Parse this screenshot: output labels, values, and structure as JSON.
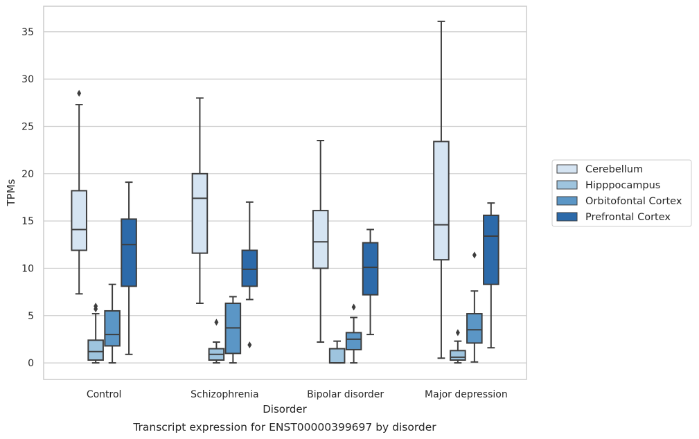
{
  "chart_data": {
    "type": "box",
    "caption": "Transcript expression for ENST00000399697 by disorder",
    "xlabel": "Disorder",
    "ylabel": "TPMs",
    "ylim": [
      -1.75,
      37.7
    ],
    "yticks": [
      0,
      5,
      10,
      15,
      20,
      25,
      30,
      35
    ],
    "grid": "horizontal",
    "legend_position": "right",
    "categories": [
      "Control",
      "Schizophrenia",
      "Bipolar disorder",
      "Major depression"
    ],
    "series": [
      {
        "name": "Cerebellum",
        "color": "#d5e4f2",
        "boxes": [
          {
            "whislo": 7.3,
            "q1": 11.9,
            "med": 14.1,
            "q3": 18.2,
            "whishi": 27.3,
            "fliers": [
              28.5
            ]
          },
          {
            "whislo": 6.3,
            "q1": 11.6,
            "med": 17.4,
            "q3": 20.0,
            "whishi": 28.0,
            "fliers": []
          },
          {
            "whislo": 2.2,
            "q1": 10.0,
            "med": 12.8,
            "q3": 16.1,
            "whishi": 23.5,
            "fliers": []
          },
          {
            "whislo": 0.5,
            "q1": 10.9,
            "med": 14.6,
            "q3": 23.4,
            "whishi": 36.1,
            "fliers": []
          }
        ]
      },
      {
        "name": "Hipppocampus",
        "color": "#9ec4de",
        "boxes": [
          {
            "whislo": 0.0,
            "q1": 0.3,
            "med": 1.2,
            "q3": 2.4,
            "whishi": 5.2,
            "fliers": [
              5.7,
              6.0
            ]
          },
          {
            "whislo": 0.0,
            "q1": 0.3,
            "med": 0.9,
            "q3": 1.5,
            "whishi": 2.2,
            "fliers": [
              4.3
            ]
          },
          {
            "whislo": 0.0,
            "q1": 0.0,
            "med": 0.0,
            "q3": 1.5,
            "whishi": 2.3,
            "fliers": []
          },
          {
            "whislo": 0.0,
            "q1": 0.3,
            "med": 0.6,
            "q3": 1.3,
            "whishi": 2.3,
            "fliers": [
              3.2
            ]
          }
        ]
      },
      {
        "name": "Orbitofontal Cortex",
        "color": "#5b96c6",
        "boxes": [
          {
            "whislo": 0.0,
            "q1": 1.8,
            "med": 3.0,
            "q3": 5.5,
            "whishi": 8.3,
            "fliers": []
          },
          {
            "whislo": 0.0,
            "q1": 1.0,
            "med": 3.7,
            "q3": 6.3,
            "whishi": 7.0,
            "fliers": []
          },
          {
            "whislo": 0.0,
            "q1": 1.4,
            "med": 2.5,
            "q3": 3.2,
            "whishi": 4.8,
            "fliers": [
              5.9
            ]
          },
          {
            "whislo": 0.1,
            "q1": 2.1,
            "med": 3.5,
            "q3": 5.2,
            "whishi": 7.6,
            "fliers": [
              11.4
            ]
          }
        ]
      },
      {
        "name": "Prefrontal Cortex",
        "color": "#2c6aaa",
        "boxes": [
          {
            "whislo": 0.9,
            "q1": 8.1,
            "med": 12.5,
            "q3": 15.2,
            "whishi": 19.1,
            "fliers": []
          },
          {
            "whislo": 6.7,
            "q1": 8.1,
            "med": 9.9,
            "q3": 11.9,
            "whishi": 17.0,
            "fliers": [
              1.9
            ]
          },
          {
            "whislo": 3.0,
            "q1": 7.2,
            "med": 10.1,
            "q3": 12.7,
            "whishi": 14.1,
            "fliers": []
          },
          {
            "whislo": 1.6,
            "q1": 8.3,
            "med": 13.4,
            "q3": 15.6,
            "whishi": 16.9,
            "fliers": []
          }
        ]
      }
    ]
  }
}
